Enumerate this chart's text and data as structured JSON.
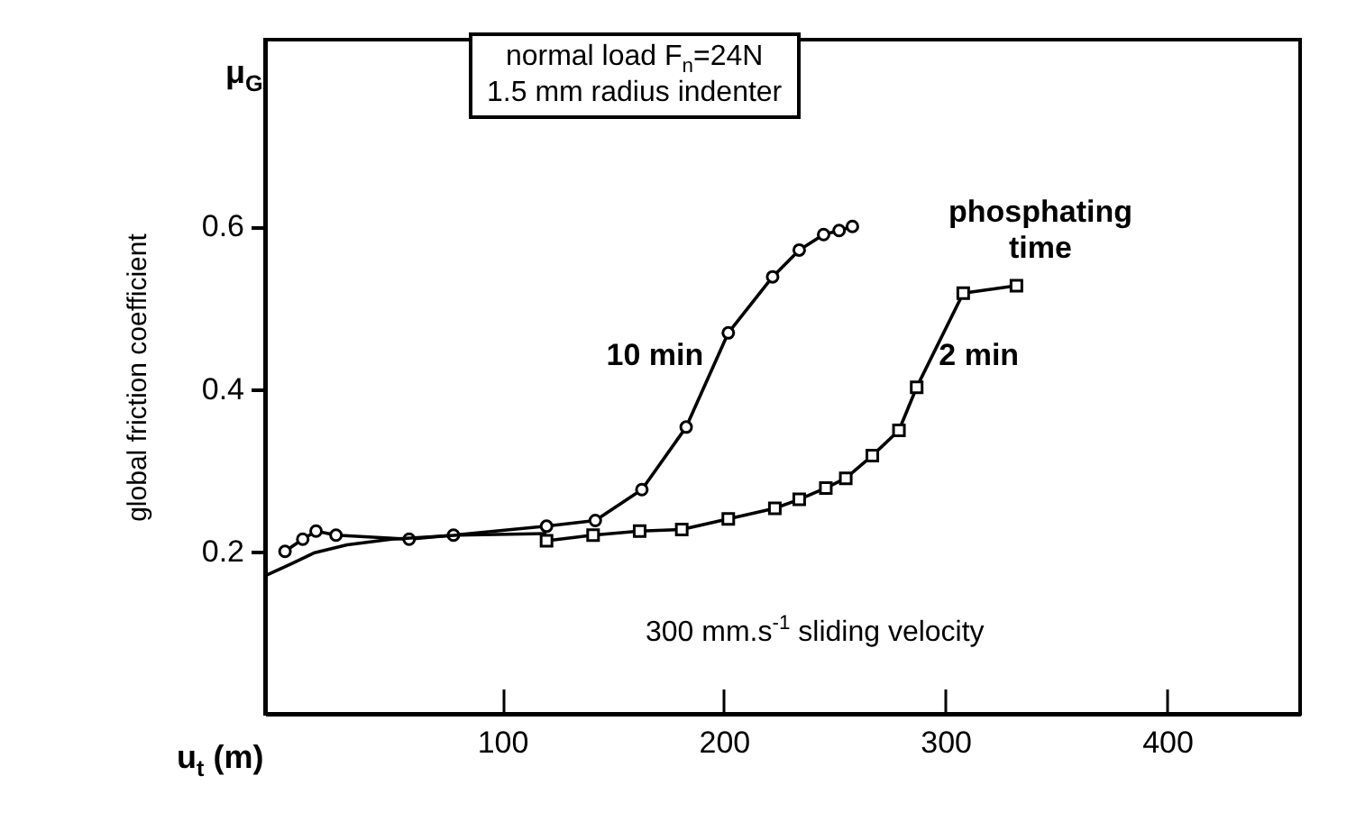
{
  "chart_data": {
    "type": "line",
    "ylabel": "global friction coefficient",
    "xlabel": "u$_{t}$ (m)",
    "annotations": [
      "μ$_{G}$",
      "normal load F$_{n}$=24N",
      "1.5 mm radius indenter",
      "phosphating time",
      "300 mm.s$^{-1}$ sliding velocity"
    ],
    "xlim": [
      -7,
      460
    ],
    "xticks": [
      100,
      200,
      300,
      400
    ],
    "ylim": [
      0,
      0.83
    ],
    "yticks": [
      0.2,
      0.4,
      0.6
    ],
    "grid": false,
    "line_style": "solid",
    "series": [
      {
        "name": "10 min",
        "color": "#000000",
        "marker": "circle",
        "x": [
          2,
          10,
          16,
          25,
          58,
          78,
          120,
          142,
          163,
          183,
          202,
          222,
          234,
          245,
          252,
          258
        ],
        "values": [
          0.2,
          0.215,
          0.225,
          0.22,
          0.215,
          0.22,
          0.231,
          0.238,
          0.276,
          0.353,
          0.469,
          0.538,
          0.571,
          0.59,
          0.595,
          0.6
        ]
      },
      {
        "name": "2 min",
        "color": "#000000",
        "marker": "square",
        "x": [
          120,
          141,
          162,
          181,
          202,
          223,
          234,
          246,
          255,
          267,
          279,
          287,
          308,
          332
        ],
        "values": [
          0.213,
          0.22,
          0.225,
          0.227,
          0.24,
          0.253,
          0.264,
          0.278,
          0.29,
          0.318,
          0.349,
          0.402,
          0.518,
          0.527
        ]
      },
      {
        "color": "#000000",
        "marker": "none",
        "x": [
          -7,
          5,
          15,
          30,
          50,
          80,
          120
        ],
        "values": [
          0.17,
          0.185,
          0.198,
          0.208,
          0.215,
          0.22,
          0.222
        ]
      }
    ]
  }
}
